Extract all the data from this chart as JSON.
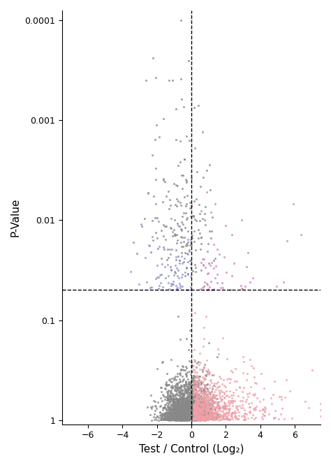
{
  "title": "",
  "xlabel": "Test / Control (Log₂)",
  "ylabel": "P-Value",
  "xlim": [
    -7.5,
    7.5
  ],
  "x_ticks": [
    -6,
    -4,
    -2,
    0,
    2,
    4,
    6
  ],
  "y_ticks": [
    0.0001,
    0.001,
    0.01,
    0.1,
    1
  ],
  "y_tick_labels": [
    "0.0001",
    "0.001",
    "0.01",
    "0.1",
    "1"
  ],
  "hline": 0.05,
  "vline": 0,
  "colors": {
    "gray": "#888888",
    "blue": "#9090d0",
    "pink_sig": "#d080c0",
    "red_ns": "#f0a0a8"
  },
  "point_size": 5,
  "alpha": 0.75,
  "seed": 42,
  "background": "#ffffff"
}
